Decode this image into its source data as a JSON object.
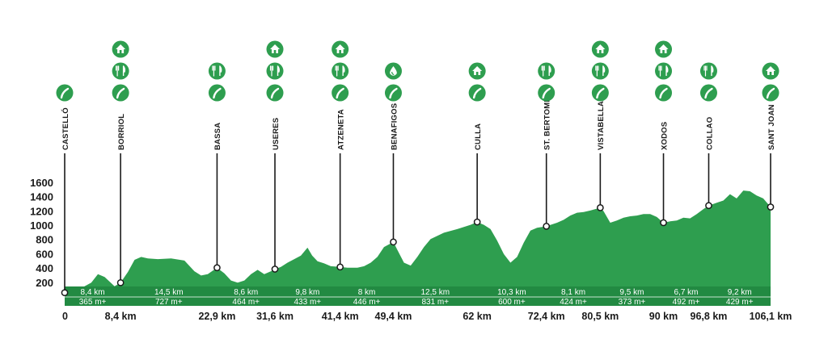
{
  "chart_data": {
    "type": "area",
    "title": "",
    "xlabel": "",
    "ylabel": "",
    "xlim": [
      0,
      106.1
    ],
    "ylim": [
      0,
      1750
    ],
    "y_ticks": [
      "200",
      "400",
      "600",
      "800",
      "1000",
      "1200",
      "1400",
      "1600"
    ],
    "y_tick_values": [
      200,
      400,
      600,
      800,
      1000,
      1200,
      1400,
      1600
    ],
    "colors": {
      "fill": "#2e9e4f",
      "icon": "#2e9e4f",
      "line": "#1a1a1a",
      "text": "#1a1a1a"
    },
    "profile": {
      "x": [
        0,
        2,
        4,
        5,
        6,
        7.5,
        8.4,
        9.5,
        10.5,
        11.5,
        12.5,
        14,
        16,
        18,
        19.5,
        20.5,
        21.5,
        22.9,
        24,
        25,
        26,
        27,
        28,
        29,
        30,
        31,
        31.6,
        32.5,
        33.5,
        34.5,
        35.5,
        36.5,
        37.2,
        38,
        39,
        40,
        41.4,
        42.5,
        44,
        45,
        46,
        47,
        48,
        49.4,
        50,
        51,
        52,
        53,
        54,
        55,
        57,
        59,
        61,
        62,
        63,
        64,
        65,
        66,
        67,
        68,
        69,
        70,
        71,
        72.4,
        74,
        75,
        76,
        77,
        78,
        79,
        80.5,
        81,
        82,
        83,
        84,
        85,
        86,
        87,
        88,
        89,
        90,
        91,
        92,
        93,
        94,
        95,
        96,
        96.8,
        98,
        99,
        100,
        101,
        102,
        103,
        104,
        105,
        106.1
      ],
      "elevation": [
        60,
        100,
        200,
        320,
        280,
        150,
        200,
        350,
        520,
        560,
        540,
        530,
        540,
        510,
        360,
        300,
        320,
        410,
        330,
        230,
        200,
        230,
        320,
        380,
        320,
        360,
        390,
        420,
        480,
        530,
        580,
        690,
        580,
        500,
        470,
        430,
        420,
        410,
        410,
        430,
        480,
        560,
        700,
        770,
        660,
        480,
        440,
        560,
        700,
        810,
        900,
        950,
        1010,
        1050,
        1010,
        950,
        790,
        600,
        480,
        560,
        760,
        930,
        970,
        990,
        1040,
        1080,
        1140,
        1180,
        1190,
        1210,
        1250,
        1200,
        1040,
        1070,
        1110,
        1130,
        1140,
        1160,
        1160,
        1120,
        1040,
        1060,
        1070,
        1110,
        1100,
        1160,
        1230,
        1280,
        1320,
        1350,
        1440,
        1380,
        1490,
        1480,
        1420,
        1380,
        1260
      ]
    },
    "waypoints": [
      {
        "name": "CASTELLÓ",
        "km": 0,
        "km_label": "0",
        "elevation": 60,
        "icons": [
          "road-icon"
        ]
      },
      {
        "name": "BORRIOL",
        "km": 8.4,
        "km_label": "8,4 km",
        "elevation": 200,
        "icons": [
          "house-icon",
          "restaurant-icon",
          "road-icon"
        ]
      },
      {
        "name": "BASSA",
        "km": 22.9,
        "km_label": "22,9 km",
        "elevation": 410,
        "icons": [
          "restaurant-icon",
          "road-icon"
        ]
      },
      {
        "name": "USERES",
        "km": 31.6,
        "km_label": "31,6 km",
        "elevation": 390,
        "icons": [
          "house-icon",
          "restaurant-icon",
          "road-icon"
        ]
      },
      {
        "name": "ATZENETA",
        "km": 41.4,
        "km_label": "41,4 km",
        "elevation": 420,
        "icons": [
          "house-icon",
          "restaurant-icon",
          "road-icon"
        ]
      },
      {
        "name": "BENAFIGOS",
        "km": 49.4,
        "km_label": "49,4 km",
        "elevation": 770,
        "icons": [
          "water-icon",
          "road-icon"
        ]
      },
      {
        "name": "CULLA",
        "km": 62,
        "km_label": "62 km",
        "elevation": 1050,
        "icons": [
          "house-icon",
          "road-icon"
        ]
      },
      {
        "name": "ST. BERTOMEU",
        "km": 72.4,
        "km_label": "72,4 km",
        "elevation": 990,
        "icons": [
          "restaurant-icon",
          "road-icon"
        ]
      },
      {
        "name": "VISTABELLA",
        "km": 80.5,
        "km_label": "80,5 km",
        "elevation": 1250,
        "icons": [
          "house-icon",
          "restaurant-icon",
          "road-icon"
        ]
      },
      {
        "name": "XODOS",
        "km": 90,
        "km_label": "90 km",
        "elevation": 1040,
        "icons": [
          "house-icon",
          "restaurant-icon",
          "road-icon"
        ]
      },
      {
        "name": "COLLAO",
        "km": 96.8,
        "km_label": "96,8 km",
        "elevation": 1280,
        "icons": [
          "restaurant-icon",
          "road-icon"
        ]
      },
      {
        "name": "SANT JOAN",
        "km": 106.1,
        "km_label": "106,1 km",
        "elevation": 1260,
        "icons": [
          "house-icon",
          "road-icon"
        ]
      }
    ],
    "segments": [
      {
        "distance": "8,4 km",
        "ascent": "365 m+"
      },
      {
        "distance": "14,5 km",
        "ascent": "727 m+"
      },
      {
        "distance": "8,6 km",
        "ascent": "464 m+"
      },
      {
        "distance": "9,8 km",
        "ascent": "433 m+"
      },
      {
        "distance": "8 km",
        "ascent": "446 m+"
      },
      {
        "distance": "12,5 km",
        "ascent": "831 m+"
      },
      {
        "distance": "10,3 km",
        "ascent": "600 m+"
      },
      {
        "distance": "8,1 km",
        "ascent": "424 m+"
      },
      {
        "distance": "9,5 km",
        "ascent": "373 m+"
      },
      {
        "distance": "6,7 km",
        "ascent": "492 m+"
      },
      {
        "distance": "9,2 km",
        "ascent": "429 m+"
      }
    ]
  }
}
